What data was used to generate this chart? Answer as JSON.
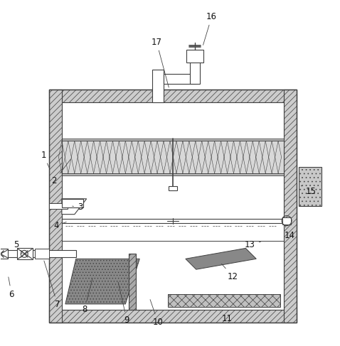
{
  "bg_color": "#ffffff",
  "lc": "#404040",
  "lw": 0.8,
  "wall_fc": "#d8d8d8",
  "hatch_lw": 0.5
}
